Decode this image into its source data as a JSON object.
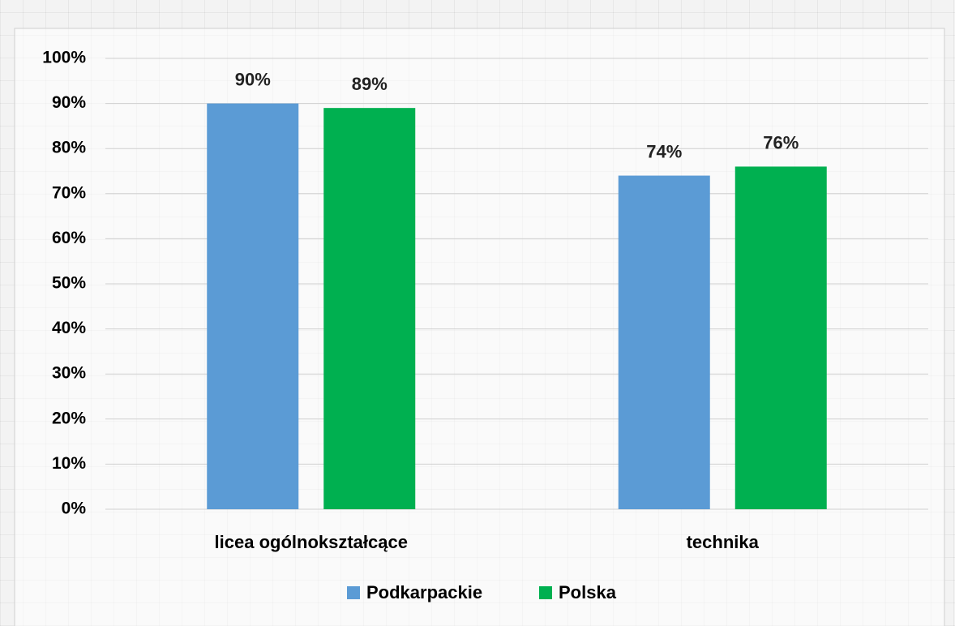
{
  "chart_data": {
    "type": "bar",
    "categories": [
      "licea ogólnokształcące",
      "technika"
    ],
    "series": [
      {
        "name": "Podkarpackie",
        "color": "#5b9bd5",
        "values": [
          90,
          74
        ],
        "value_labels": [
          "90%",
          "74%"
        ]
      },
      {
        "name": "Polska",
        "color": "#00b050",
        "values": [
          89,
          76
        ],
        "value_labels": [
          "89%",
          "76%"
        ]
      }
    ],
    "ylim": [
      0,
      100
    ],
    "yticks": [
      {
        "value": 0,
        "label": "0%"
      },
      {
        "value": 10,
        "label": "10%"
      },
      {
        "value": 20,
        "label": "20%"
      },
      {
        "value": 30,
        "label": "30%"
      },
      {
        "value": 40,
        "label": "40%"
      },
      {
        "value": 50,
        "label": "50%"
      },
      {
        "value": 60,
        "label": "60%"
      },
      {
        "value": 70,
        "label": "70%"
      },
      {
        "value": 80,
        "label": "80%"
      },
      {
        "value": 90,
        "label": "90%"
      },
      {
        "value": 100,
        "label": "100%"
      }
    ],
    "grid": true,
    "legend": "bottom"
  }
}
